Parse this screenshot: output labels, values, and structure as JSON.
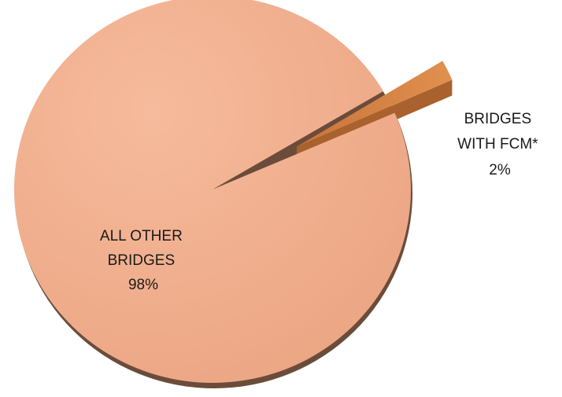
{
  "chart_data": {
    "type": "pie",
    "title": "",
    "style": "3d-exploded",
    "slices": [
      {
        "name": "ALL OTHER BRIDGES",
        "label_lines": [
          "ALL OTHER",
          "BRIDGES"
        ],
        "value": 98,
        "value_label": "98%",
        "color": "#f2b08f"
      },
      {
        "name": "BRIDGES WITH FCM*",
        "label_lines": [
          "BRIDGES",
          "WITH FCM*"
        ],
        "value": 2,
        "value_label": "2%",
        "color": "#d9854a",
        "exploded": true
      }
    ]
  }
}
